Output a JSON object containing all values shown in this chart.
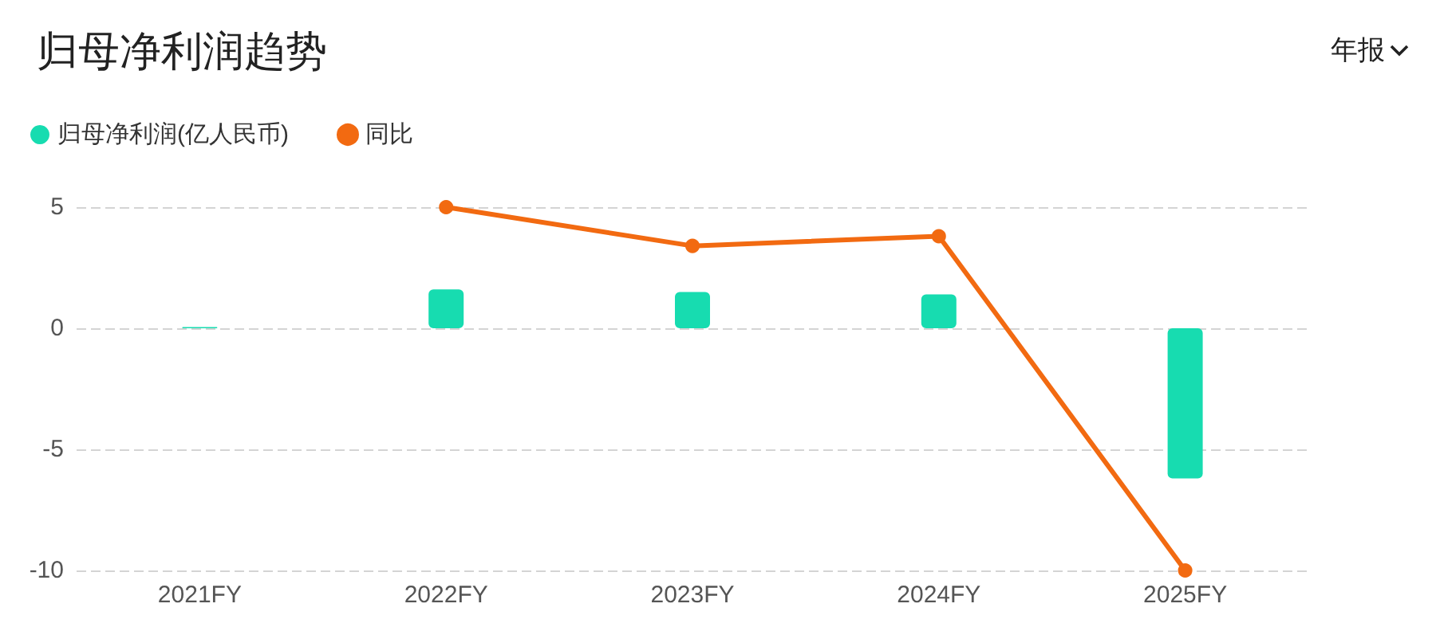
{
  "chart_data": {
    "type": "bar",
    "title": "归母净利润趋势",
    "annotations": [
      "年报"
    ],
    "categories": [
      "2021FY",
      "2022FY",
      "2023FY",
      "2024FY",
      "2025FY"
    ],
    "series": [
      {
        "name": "归母净利润(亿人民币)",
        "color": "#17dcb0",
        "values": [
          0.05,
          1.6,
          1.5,
          1.4,
          -6.2
        ]
      },
      {
        "name": "同比",
        "type": "line",
        "color": "#f26a11",
        "values": [
          null,
          5,
          3.4,
          3.8,
          -10
        ]
      }
    ],
    "ylim": [
      -10,
      5
    ],
    "yticks": [
      -10,
      -5,
      0,
      5
    ],
    "grid": "y",
    "legend": "top left",
    "marker": "circle",
    "line_style": "solid"
  }
}
